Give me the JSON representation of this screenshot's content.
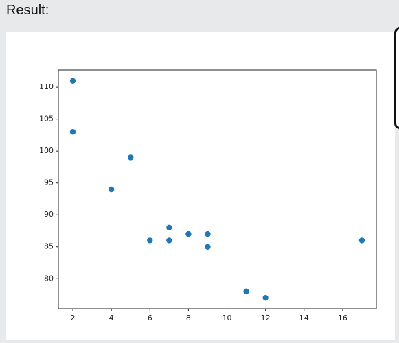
{
  "result_label": "Result:",
  "chart_data": {
    "type": "scatter",
    "x": [
      5,
      7,
      8,
      7,
      2,
      17,
      2,
      9,
      4,
      11,
      12,
      9,
      6
    ],
    "values": [
      99,
      86,
      87,
      88,
      111,
      86,
      103,
      87,
      94,
      78,
      77,
      85,
      86
    ],
    "color": "#1f77b4",
    "xlim": [
      1.25,
      17.75
    ],
    "xticks": [
      2,
      4,
      6,
      8,
      10,
      12,
      14,
      16
    ],
    "ylim": [
      75.3,
      112.7
    ],
    "yticks": [
      80,
      85,
      90,
      95,
      100,
      105,
      110
    ],
    "grid": false
  }
}
